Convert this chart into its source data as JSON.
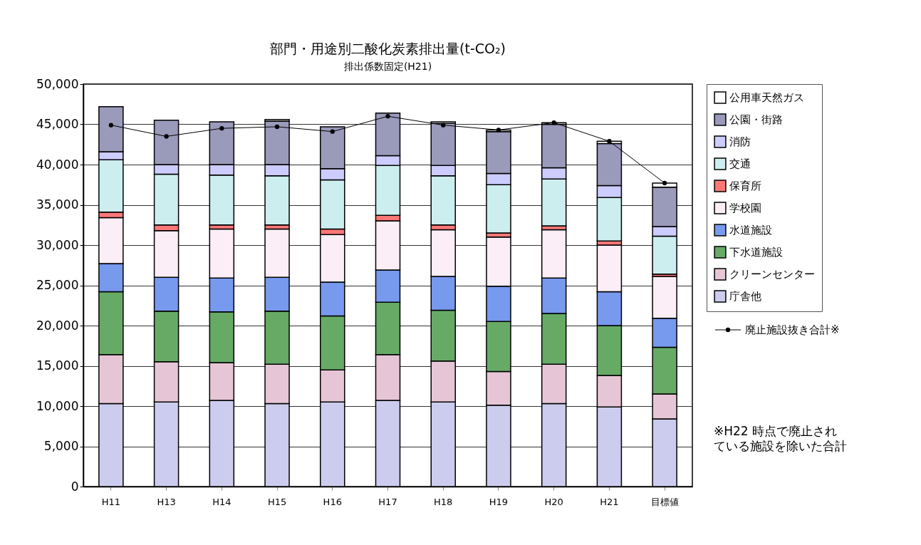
{
  "chart_data": {
    "type": "bar",
    "stacked": true,
    "title": "部門・用途別二酸化炭素排出量(t-CO₂)",
    "subtitle": "排出係数固定(H21)",
    "categories": [
      "H11",
      "H13",
      "H14",
      "H15",
      "H16",
      "H17",
      "H18",
      "H19",
      "H20",
      "H21",
      "目標値"
    ],
    "ylim": [
      0,
      50000
    ],
    "yticks": [
      {
        "value": 0,
        "label": "0"
      },
      {
        "value": 5000,
        "label": "5,000"
      },
      {
        "value": 10000,
        "label": "10,000"
      },
      {
        "value": 15000,
        "label": "15,000"
      },
      {
        "value": 20000,
        "label": "20,000"
      },
      {
        "value": 25000,
        "label": "25,000"
      },
      {
        "value": 30000,
        "label": "30,000"
      },
      {
        "value": 35000,
        "label": "35,000"
      },
      {
        "value": 40000,
        "label": "40,000"
      },
      {
        "value": 45000,
        "label": "45,000"
      },
      {
        "value": 50000,
        "label": "50,000"
      }
    ],
    "grid": "y",
    "legend": "right",
    "marker": "circle",
    "series": [
      {
        "name": "庁舎他",
        "color": "#ccccee",
        "values": [
          10300,
          10500,
          10700,
          10300,
          10500,
          10700,
          10500,
          10100,
          10300,
          9900,
          8400
        ]
      },
      {
        "name": "クリーンセンター",
        "color": "#e6c6d6",
        "values": [
          6100,
          5000,
          4700,
          4900,
          4000,
          5700,
          5100,
          4200,
          4900,
          3900,
          3100
        ]
      },
      {
        "name": "下水道施設",
        "color": "#66aa66",
        "values": [
          7800,
          6300,
          6300,
          6600,
          6700,
          6500,
          6300,
          6200,
          6300,
          6200,
          5800
        ]
      },
      {
        "name": "水道施設",
        "color": "#7799ee",
        "values": [
          3500,
          4200,
          4200,
          4200,
          4200,
          4000,
          4200,
          4400,
          4400,
          4200,
          3600
        ]
      },
      {
        "name": "学校園",
        "color": "#fbeef6",
        "values": [
          5700,
          5800,
          6100,
          6000,
          5900,
          6100,
          5800,
          6100,
          6000,
          5800,
          5200
        ]
      },
      {
        "name": "保育所",
        "color": "#ff7777",
        "values": [
          700,
          700,
          500,
          500,
          700,
          700,
          600,
          500,
          500,
          500,
          300
        ]
      },
      {
        "name": "交通",
        "color": "#cdeeee",
        "values": [
          6500,
          6300,
          6200,
          6100,
          6100,
          6200,
          6100,
          6000,
          5800,
          5400,
          4700
        ]
      },
      {
        "name": "消防",
        "color": "#ccccff",
        "values": [
          1000,
          1200,
          1300,
          1400,
          1400,
          1200,
          1300,
          1400,
          1400,
          1500,
          1200
        ]
      },
      {
        "name": "公園・街路",
        "color": "#9a9abb",
        "values": [
          5600,
          5500,
          5300,
          5400,
          5200,
          5300,
          5200,
          5200,
          5400,
          5200,
          4900
        ]
      },
      {
        "name": "公用車天然ガス",
        "color": "#ffffff",
        "values": [
          null,
          null,
          null,
          200,
          null,
          null,
          200,
          200,
          200,
          300,
          500
        ]
      },
      {
        "name": "廃止施設抜き合計※",
        "type": "line",
        "color": "#000000",
        "values": [
          44900,
          43500,
          44500,
          44700,
          44100,
          46000,
          44900,
          44300,
          45200,
          42900,
          37700
        ]
      }
    ],
    "annotations": [
      "※H22 時点で廃止されている施設を除いた合計"
    ]
  }
}
